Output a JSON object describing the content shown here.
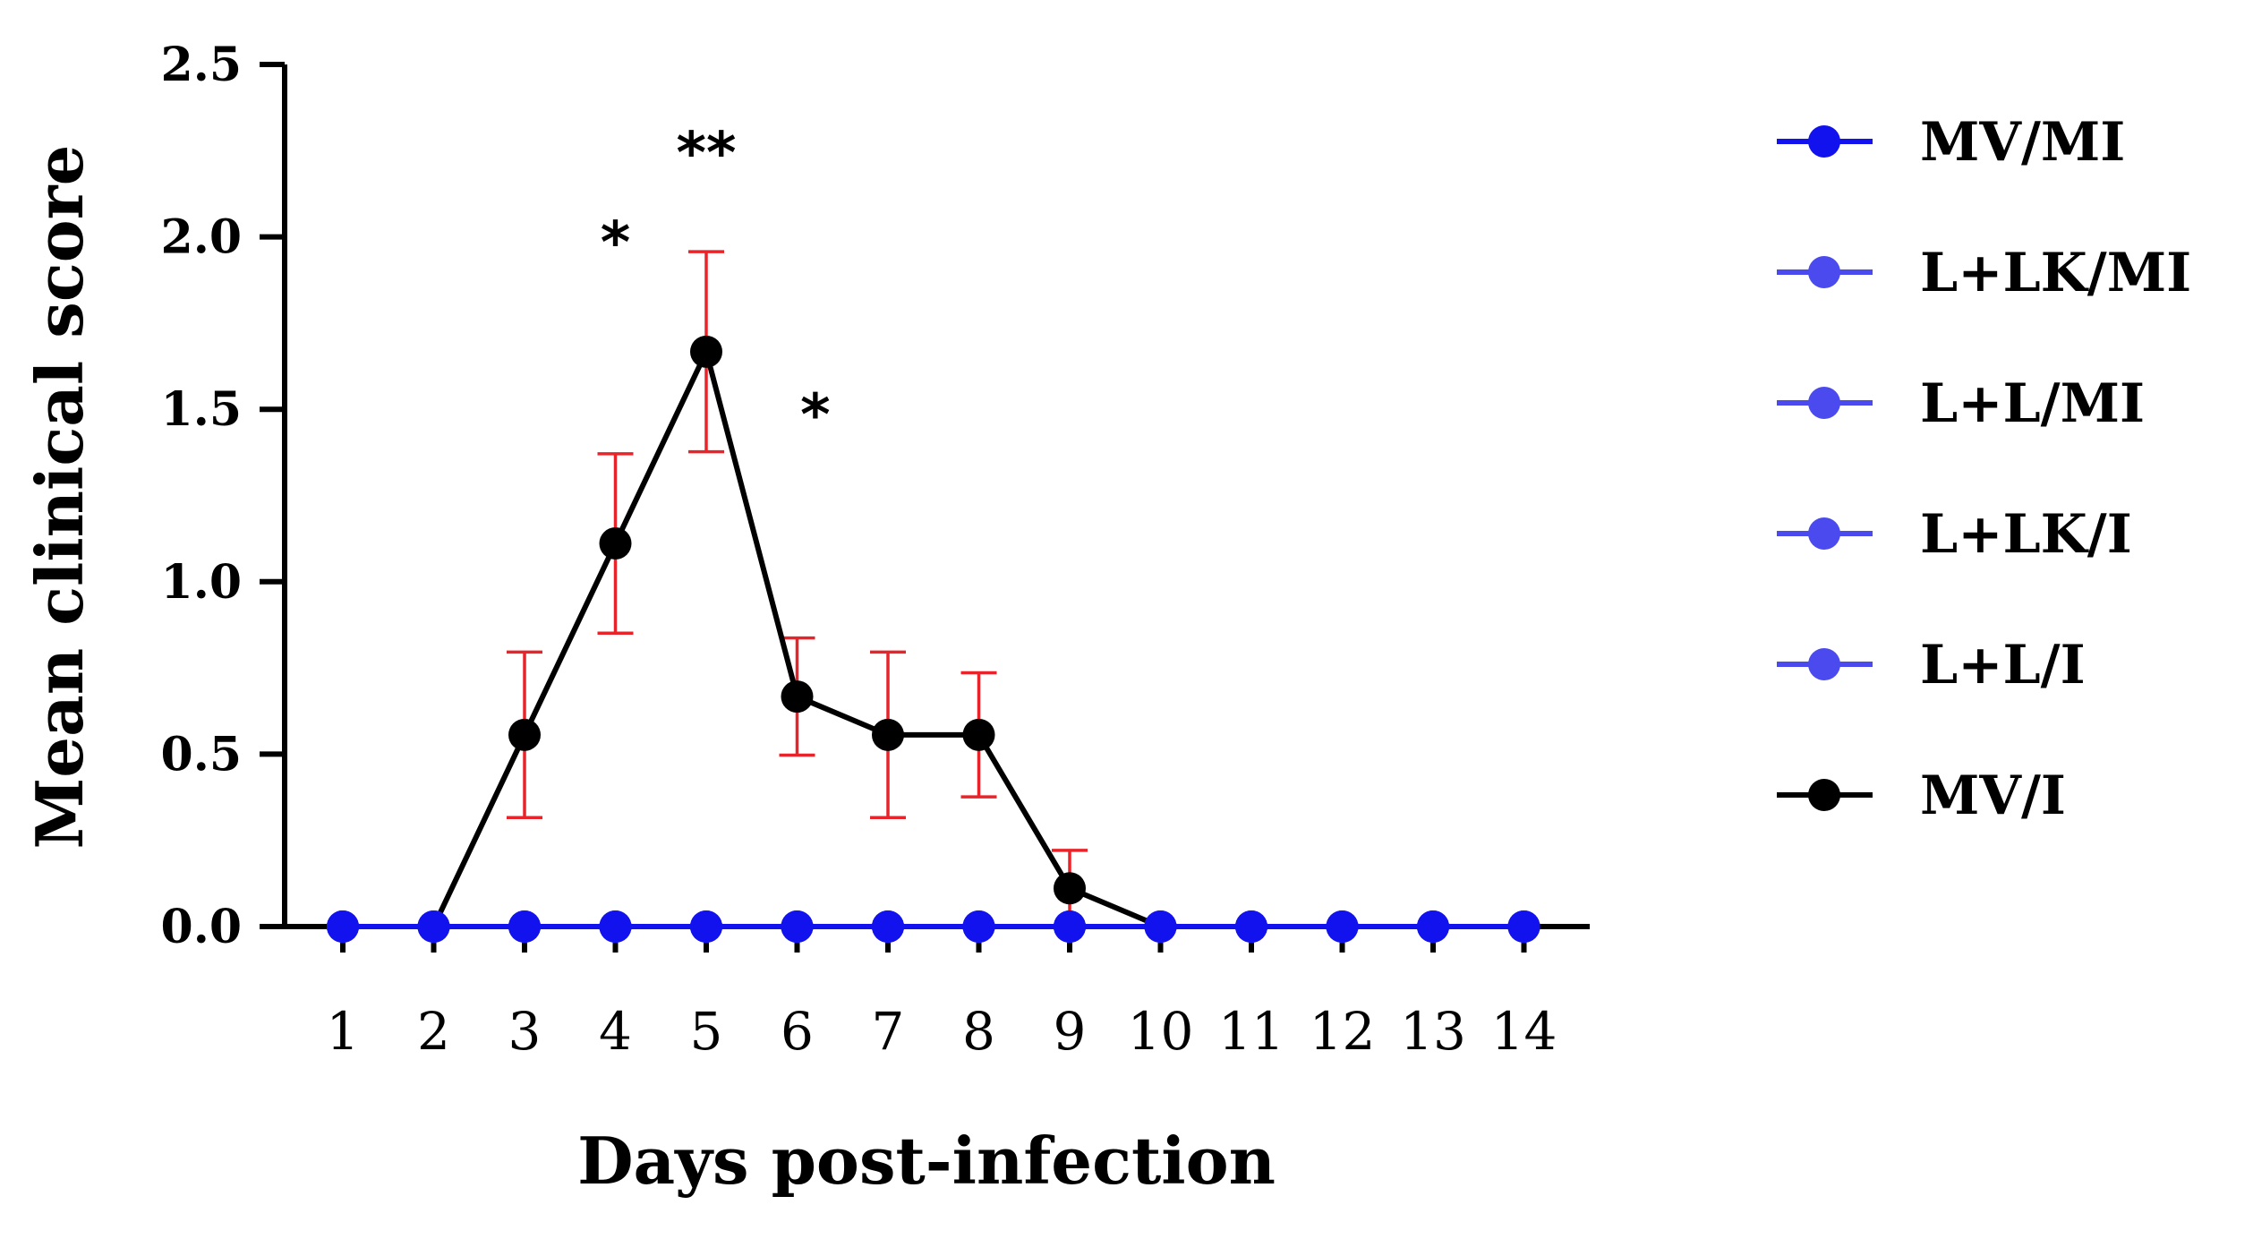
{
  "chart_data": {
    "type": "line",
    "title": "",
    "xlabel": "Days post-infection",
    "ylabel": "Mean clinical score",
    "x": [
      1,
      2,
      3,
      4,
      5,
      6,
      7,
      8,
      9,
      10,
      11,
      12,
      13,
      14
    ],
    "x_tick_labels": [
      "1",
      "2",
      "3",
      "4",
      "5",
      "6",
      "7",
      "8",
      "9",
      "10",
      "11",
      "12",
      "13",
      "14"
    ],
    "ylim": [
      0,
      2.5
    ],
    "y_ticks": [
      0.0,
      0.5,
      1.0,
      1.5,
      2.0,
      2.5
    ],
    "y_tick_labels": [
      "0.0",
      "0.5",
      "1.0",
      "1.5",
      "2.0",
      "2.5"
    ],
    "grid": false,
    "legend_position": "right",
    "series": [
      {
        "name": "MV/MI",
        "color": "#1212ee",
        "values": [
          0,
          0,
          0,
          0,
          0,
          0,
          0,
          0,
          0,
          0,
          0,
          0,
          0,
          0
        ]
      },
      {
        "name": "L+LK/MI",
        "color": "#4a4aee",
        "values": [
          0,
          0,
          0,
          0,
          0,
          0,
          0,
          0,
          0,
          0,
          0,
          0,
          0,
          0
        ]
      },
      {
        "name": "L+L/MI",
        "color": "#4a4aee",
        "values": [
          0,
          0,
          0,
          0,
          0,
          0,
          0,
          0,
          0,
          0,
          0,
          0,
          0,
          0
        ]
      },
      {
        "name": "L+LK/I",
        "color": "#4a4aee",
        "values": [
          0,
          0,
          0,
          0,
          0,
          0,
          0,
          0,
          0,
          0,
          0,
          0,
          0,
          0
        ]
      },
      {
        "name": "L+L/I",
        "color": "#4a4aee",
        "values": [
          0,
          0,
          0,
          0,
          0,
          0,
          0,
          0,
          0,
          0,
          0,
          0,
          0,
          0
        ]
      },
      {
        "name": "MV/I",
        "color": "#000000",
        "values": [
          0,
          0,
          0.556,
          1.111,
          1.667,
          0.667,
          0.556,
          0.556,
          0.111,
          0,
          0,
          0,
          0,
          0
        ],
        "error": [
          0,
          0,
          0.24,
          0.26,
          0.29,
          0.17,
          0.24,
          0.18,
          0.11,
          0,
          0,
          0,
          0,
          0
        ],
        "error_color": "#e8242a"
      }
    ],
    "annotations": [
      {
        "text": "*",
        "x": 4,
        "y": 2.03
      },
      {
        "text": "**",
        "x": 5,
        "y": 2.29
      },
      {
        "text": "*",
        "x": 6.2,
        "y": 1.53
      }
    ]
  }
}
